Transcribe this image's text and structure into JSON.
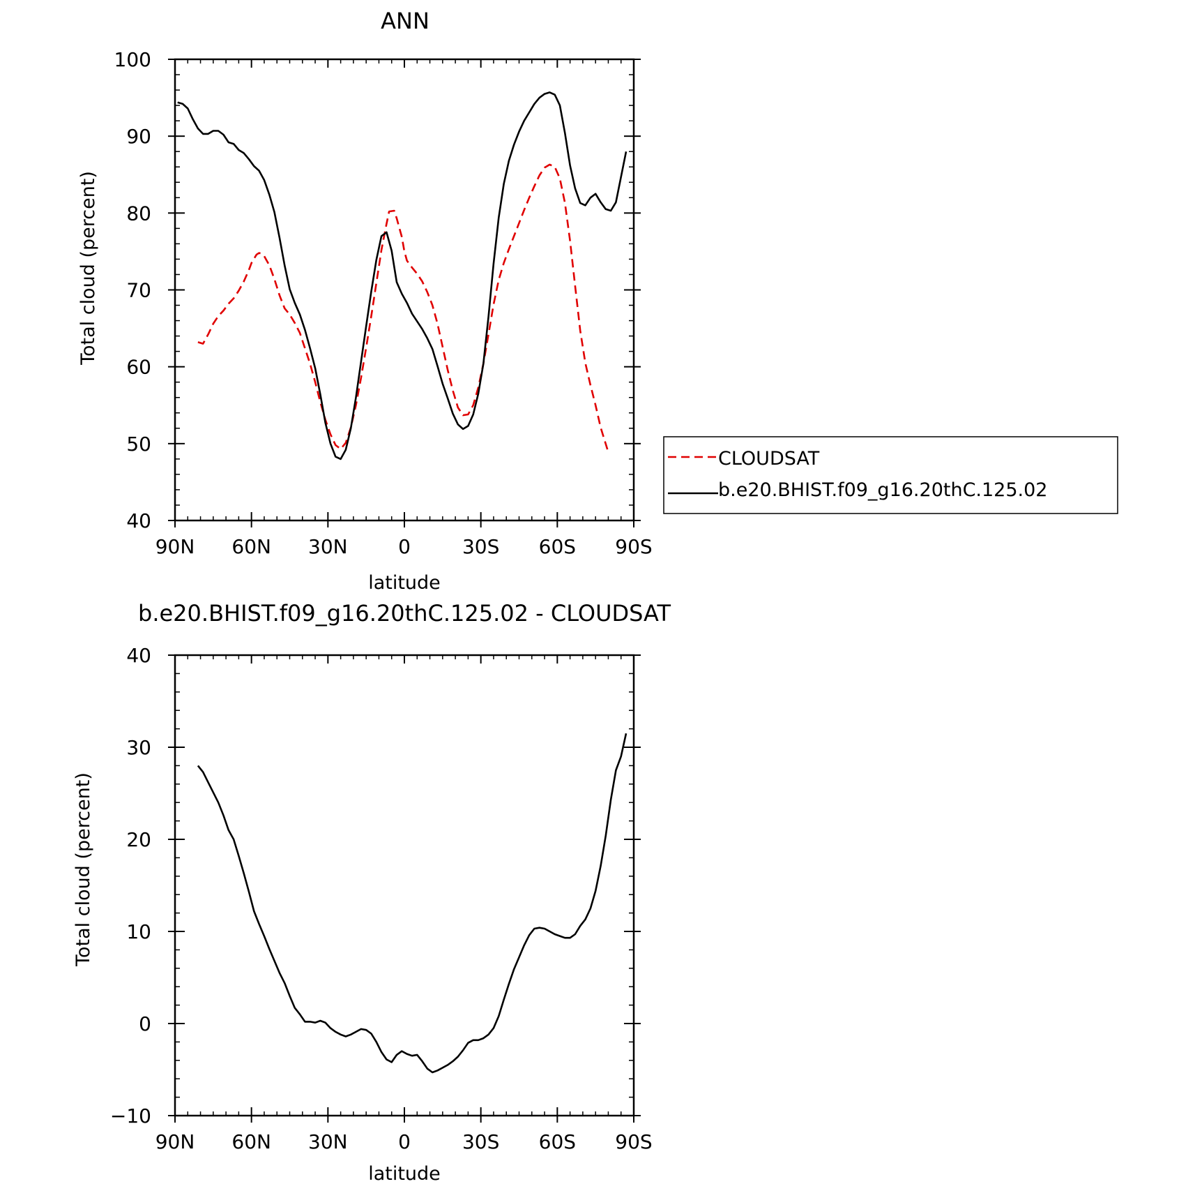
{
  "chart_data": [
    {
      "type": "line",
      "title": "ANN",
      "xlabel": "latitude",
      "ylabel": "Total cloud (percent)",
      "xlim": [
        90,
        -90
      ],
      "ylim": [
        40,
        100
      ],
      "x_ticks": [
        90,
        60,
        30,
        0,
        -30,
        -60,
        -90
      ],
      "x_tick_labels": [
        "90N",
        "60N",
        "30N",
        "0",
        "30S",
        "60S",
        "90S"
      ],
      "y_ticks": [
        40,
        50,
        60,
        70,
        80,
        90,
        100
      ],
      "y_tick_labels": [
        "40",
        "50",
        "60",
        "70",
        "80",
        "90",
        "100"
      ],
      "grid": false,
      "legend_position": "right",
      "series": [
        {
          "name": "CLOUDSAT",
          "color": "#e00000",
          "style": "dashed",
          "points": [
            [
              81,
              63.2
            ],
            [
              79,
              63.0
            ],
            [
              77,
              64.2
            ],
            [
              75,
              65.6
            ],
            [
              73,
              66.6
            ],
            [
              71,
              67.3
            ],
            [
              69,
              68.2
            ],
            [
              67,
              68.9
            ],
            [
              65,
              69.9
            ],
            [
              63,
              71.1
            ],
            [
              61,
              72.6
            ],
            [
              60,
              73.5
            ],
            [
              58,
              74.6
            ],
            [
              57,
              74.8
            ],
            [
              56,
              74.7
            ],
            [
              55,
              74.4
            ],
            [
              53,
              73.2
            ],
            [
              51,
              71.4
            ],
            [
              49,
              69.3
            ],
            [
              47,
              67.6
            ],
            [
              45,
              66.8
            ],
            [
              43,
              65.7
            ],
            [
              41,
              64.4
            ],
            [
              39,
              62.4
            ],
            [
              37,
              60.4
            ],
            [
              35,
              58.0
            ],
            [
              33,
              55.4
            ],
            [
              31,
              53.1
            ],
            [
              29,
              51.2
            ],
            [
              27,
              49.8
            ],
            [
              25,
              49.3
            ],
            [
              23,
              50.1
            ],
            [
              21,
              52.1
            ],
            [
              19,
              55.0
            ],
            [
              17,
              58.6
            ],
            [
              15,
              62.5
            ],
            [
              13,
              66.6
            ],
            [
              11,
              70.9
            ],
            [
              9,
              75.2
            ],
            [
              7,
              78.6
            ],
            [
              6,
              80.2
            ],
            [
              4,
              80.3
            ],
            [
              3,
              79.3
            ],
            [
              1,
              76.9
            ],
            [
              0,
              75.0
            ],
            [
              -1,
              73.8
            ],
            [
              -3,
              72.9
            ],
            [
              -5,
              72.1
            ],
            [
              -7,
              71.1
            ],
            [
              -9,
              69.7
            ],
            [
              -11,
              68.0
            ],
            [
              -13,
              65.6
            ],
            [
              -15,
              62.6
            ],
            [
              -17,
              59.6
            ],
            [
              -19,
              56.9
            ],
            [
              -21,
              54.7
            ],
            [
              -23,
              53.7
            ],
            [
              -25,
              53.8
            ],
            [
              -27,
              55.0
            ],
            [
              -29,
              57.3
            ],
            [
              -31,
              60.4
            ],
            [
              -33,
              64.2
            ],
            [
              -35,
              68.1
            ],
            [
              -37,
              71.3
            ],
            [
              -39,
              73.5
            ],
            [
              -41,
              75.3
            ],
            [
              -43,
              77.0
            ],
            [
              -45,
              78.7
            ],
            [
              -47,
              80.4
            ],
            [
              -49,
              82.0
            ],
            [
              -51,
              83.5
            ],
            [
              -53,
              84.9
            ],
            [
              -55,
              85.9
            ],
            [
              -57,
              86.3
            ],
            [
              -59,
              86.0
            ],
            [
              -61,
              84.5
            ],
            [
              -63,
              81.3
            ],
            [
              -65,
              76.4
            ],
            [
              -67,
              70.5
            ],
            [
              -69,
              64.7
            ],
            [
              -71,
              60.5
            ],
            [
              -73,
              57.6
            ],
            [
              -75,
              55.0
            ],
            [
              -77,
              52.1
            ],
            [
              -80,
              48.9
            ]
          ]
        },
        {
          "name": "b.e20.BHIST.f09_g16.20thC.125.02",
          "color": "#000000",
          "style": "solid",
          "points": [
            [
              89,
              94.4
            ],
            [
              87,
              94.2
            ],
            [
              85,
              93.6
            ],
            [
              83,
              92.2
            ],
            [
              81,
              91.0
            ],
            [
              79,
              90.3
            ],
            [
              77,
              90.3
            ],
            [
              75,
              90.7
            ],
            [
              73,
              90.7
            ],
            [
              71,
              90.2
            ],
            [
              69,
              89.2
            ],
            [
              67,
              89.0
            ],
            [
              65,
              88.2
            ],
            [
              63,
              87.8
            ],
            [
              61,
              87.0
            ],
            [
              59,
              86.1
            ],
            [
              57,
              85.5
            ],
            [
              55,
              84.3
            ],
            [
              53,
              82.4
            ],
            [
              51,
              80.1
            ],
            [
              49,
              76.8
            ],
            [
              47,
              73.2
            ],
            [
              45,
              70.1
            ],
            [
              43,
              68.3
            ],
            [
              41,
              66.8
            ],
            [
              39,
              64.8
            ],
            [
              37,
              62.4
            ],
            [
              35,
              59.8
            ],
            [
              33,
              56.4
            ],
            [
              31,
              52.7
            ],
            [
              29,
              50.0
            ],
            [
              27,
              48.3
            ],
            [
              25,
              48.0
            ],
            [
              23,
              49.2
            ],
            [
              21,
              52.0
            ],
            [
              19,
              56.0
            ],
            [
              17,
              60.7
            ],
            [
              15,
              65.3
            ],
            [
              13,
              69.8
            ],
            [
              11,
              73.9
            ],
            [
              9,
              77.0
            ],
            [
              7,
              77.5
            ],
            [
              5,
              75.1
            ],
            [
              4,
              73.0
            ],
            [
              3,
              71.0
            ],
            [
              1,
              69.5
            ],
            [
              -1,
              68.3
            ],
            [
              -3,
              66.9
            ],
            [
              -5,
              65.9
            ],
            [
              -7,
              64.9
            ],
            [
              -9,
              63.7
            ],
            [
              -11,
              62.3
            ],
            [
              -13,
              60.1
            ],
            [
              -15,
              57.8
            ],
            [
              -17,
              55.9
            ],
            [
              -19,
              53.9
            ],
            [
              -21,
              52.5
            ],
            [
              -23,
              51.9
            ],
            [
              -25,
              52.3
            ],
            [
              -27,
              53.8
            ],
            [
              -29,
              56.5
            ],
            [
              -31,
              60.4
            ],
            [
              -33,
              66.5
            ],
            [
              -35,
              73.4
            ],
            [
              -37,
              79.4
            ],
            [
              -39,
              83.8
            ],
            [
              -41,
              86.8
            ],
            [
              -43,
              88.9
            ],
            [
              -45,
              90.6
            ],
            [
              -47,
              92.0
            ],
            [
              -49,
              93.1
            ],
            [
              -51,
              94.2
            ],
            [
              -53,
              95.0
            ],
            [
              -55,
              95.5
            ],
            [
              -57,
              95.7
            ],
            [
              -59,
              95.4
            ],
            [
              -61,
              94.0
            ],
            [
              -63,
              90.4
            ],
            [
              -65,
              86.2
            ],
            [
              -67,
              83.2
            ],
            [
              -69,
              81.3
            ],
            [
              -71,
              81.0
            ],
            [
              -73,
              82.0
            ],
            [
              -75,
              82.5
            ],
            [
              -77,
              81.4
            ],
            [
              -79,
              80.5
            ],
            [
              -81,
              80.3
            ],
            [
              -83,
              81.4
            ],
            [
              -87,
              88.0
            ]
          ]
        }
      ]
    },
    {
      "type": "line",
      "title": "b.e20.BHIST.f09_g16.20thC.125.02 - CLOUDSAT",
      "xlabel": "latitude",
      "ylabel": "Total cloud (percent)",
      "xlim": [
        90,
        -90
      ],
      "ylim": [
        -10,
        40
      ],
      "x_ticks": [
        90,
        60,
        30,
        0,
        -30,
        -60,
        -90
      ],
      "x_tick_labels": [
        "90N",
        "60N",
        "30N",
        "0",
        "30S",
        "60S",
        "90S"
      ],
      "y_ticks": [
        -10,
        0,
        10,
        20,
        30,
        40
      ],
      "y_tick_labels": [
        "−10",
        "0",
        "10",
        "20",
        "30",
        "40"
      ],
      "grid": false,
      "series": [
        {
          "color": "#000000",
          "style": "solid",
          "points": [
            [
              81,
              28.0
            ],
            [
              79,
              27.3
            ],
            [
              77,
              26.2
            ],
            [
              75,
              25.1
            ],
            [
              73,
              24.0
            ],
            [
              71,
              22.6
            ],
            [
              69,
              21.0
            ],
            [
              67,
              20.0
            ],
            [
              65,
              18.2
            ],
            [
              63,
              16.3
            ],
            [
              61,
              14.3
            ],
            [
              59,
              12.2
            ],
            [
              57,
              10.8
            ],
            [
              55,
              9.5
            ],
            [
              53,
              8.1
            ],
            [
              51,
              6.8
            ],
            [
              49,
              5.5
            ],
            [
              47,
              4.4
            ],
            [
              45,
              3.0
            ],
            [
              43,
              1.7
            ],
            [
              41,
              1.0
            ],
            [
              39,
              0.2
            ],
            [
              37,
              0.2
            ],
            [
              35,
              0.1
            ],
            [
              33,
              0.3
            ],
            [
              31,
              0.1
            ],
            [
              29,
              -0.5
            ],
            [
              27,
              -0.9
            ],
            [
              25,
              -1.2
            ],
            [
              23,
              -1.4
            ],
            [
              21,
              -1.2
            ],
            [
              19,
              -0.9
            ],
            [
              17,
              -0.6
            ],
            [
              15,
              -0.7
            ],
            [
              13,
              -1.1
            ],
            [
              11,
              -2.0
            ],
            [
              9,
              -3.1
            ],
            [
              7,
              -3.9
            ],
            [
              5,
              -4.2
            ],
            [
              3,
              -3.4
            ],
            [
              1,
              -3.0
            ],
            [
              -1,
              -3.3
            ],
            [
              -3,
              -3.5
            ],
            [
              -5,
              -3.4
            ],
            [
              -7,
              -4.1
            ],
            [
              -9,
              -4.9
            ],
            [
              -11,
              -5.3
            ],
            [
              -13,
              -5.1
            ],
            [
              -15,
              -4.8
            ],
            [
              -17,
              -4.5
            ],
            [
              -19,
              -4.1
            ],
            [
              -21,
              -3.6
            ],
            [
              -23,
              -2.9
            ],
            [
              -25,
              -2.1
            ],
            [
              -27,
              -1.8
            ],
            [
              -29,
              -1.8
            ],
            [
              -31,
              -1.6
            ],
            [
              -33,
              -1.2
            ],
            [
              -35,
              -0.5
            ],
            [
              -37,
              0.8
            ],
            [
              -39,
              2.6
            ],
            [
              -41,
              4.3
            ],
            [
              -43,
              5.9
            ],
            [
              -45,
              7.2
            ],
            [
              -47,
              8.5
            ],
            [
              -49,
              9.6
            ],
            [
              -51,
              10.3
            ],
            [
              -53,
              10.4
            ],
            [
              -55,
              10.3
            ],
            [
              -57,
              10.0
            ],
            [
              -59,
              9.7
            ],
            [
              -61,
              9.5
            ],
            [
              -63,
              9.3
            ],
            [
              -65,
              9.3
            ],
            [
              -67,
              9.7
            ],
            [
              -69,
              10.6
            ],
            [
              -71,
              11.3
            ],
            [
              -73,
              12.5
            ],
            [
              -75,
              14.4
            ],
            [
              -77,
              17.1
            ],
            [
              -79,
              20.4
            ],
            [
              -81,
              24.3
            ],
            [
              -83,
              27.5
            ],
            [
              -85,
              29.0
            ],
            [
              -87,
              31.5
            ]
          ]
        }
      ]
    }
  ]
}
